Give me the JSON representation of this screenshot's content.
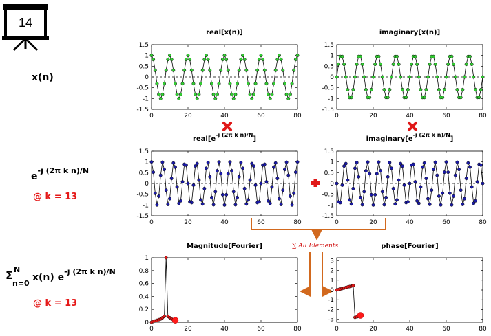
{
  "slide_number": "14",
  "colors": {
    "green": "#33cc33",
    "blue": "#1a1aa6",
    "red": "#e01818",
    "orange": "#d2691e"
  },
  "icons": {
    "slide_icon": "presentation-board-icon",
    "multiply": "red-x-icon",
    "plus": "red-plus-icon"
  },
  "labels": {
    "xn": "x(n)",
    "kernel_base": "e",
    "kernel_exp": "-j (2π k n)/N",
    "k1": "@ k = 13",
    "sum_sigma": "Σ",
    "sum_top": "N",
    "sum_bottom": "n=0",
    "sum_body": "x(n) e",
    "sum_exp": "-j (2π k n)/N",
    "k2": "@ k = 13",
    "sum_all": "∑ All Elements"
  },
  "chart_data": [
    {
      "id": "real-xn",
      "type": "line",
      "title": "real[x(n)]",
      "color": "green",
      "function": "cos",
      "frequency": 8,
      "N": 80,
      "xlim": [
        0,
        80
      ],
      "ylim": [
        -1.5,
        1.5
      ],
      "xticks": [
        0,
        20,
        40,
        60,
        80
      ],
      "yticks": [
        1.5,
        1,
        0.5,
        0,
        -0.5,
        -1,
        -1.5
      ],
      "zero_line": "dashed"
    },
    {
      "id": "imag-xn",
      "type": "line",
      "title": "imaginary[x(n)]",
      "color": "green",
      "function": "sin",
      "frequency": 8,
      "N": 80,
      "xlim": [
        0,
        80
      ],
      "ylim": [
        -1.5,
        1.5
      ],
      "xticks": [
        0,
        20,
        40,
        60,
        80
      ],
      "yticks": [
        1.5,
        1,
        0.5,
        0,
        -0.5,
        -1,
        -1.5
      ],
      "zero_line": "dashed"
    },
    {
      "id": "real-kernel",
      "type": "line",
      "title_base": "real[e",
      "title_exp": "-j (2π k n)/N",
      "title_end": "]",
      "color": "blue",
      "function": "cos",
      "frequency": 13,
      "N": 80,
      "xlim": [
        0,
        80
      ],
      "ylim": [
        -1.5,
        1.5
      ],
      "xticks": [
        0,
        20,
        40,
        60,
        80
      ],
      "yticks": [
        1.5,
        1,
        0.5,
        0,
        -0.5,
        -1,
        -1.5
      ],
      "zero_line": "dashed"
    },
    {
      "id": "imag-kernel",
      "type": "line",
      "title_base": "imaginary[e",
      "title_exp": "-j (2π k n)/N",
      "title_end": "]",
      "color": "blue",
      "function": "-sin",
      "frequency": 13,
      "N": 80,
      "xlim": [
        0,
        80
      ],
      "ylim": [
        -1.5,
        1.5
      ],
      "xticks": [
        0,
        20,
        40,
        60,
        80
      ],
      "yticks": [
        1.5,
        1,
        0.5,
        0,
        -0.5,
        -1,
        -1.5
      ],
      "zero_line": "dashed"
    },
    {
      "id": "magnitude",
      "type": "line",
      "title": "Magnitude[Fourier]",
      "color": "red",
      "x": [
        0,
        1,
        2,
        3,
        4,
        5,
        6,
        7,
        8,
        9,
        10,
        11,
        12,
        13
      ],
      "values": [
        0.0,
        0.01,
        0.02,
        0.03,
        0.04,
        0.05,
        0.07,
        0.09,
        1.0,
        0.09,
        0.07,
        0.05,
        0.04,
        0.03
      ],
      "highlight": {
        "x": 13,
        "y": 0.03
      },
      "flat_line_to": 80,
      "xlim": [
        0,
        80
      ],
      "ylim": [
        0,
        1
      ],
      "xticks": [
        0,
        20,
        40,
        60,
        80
      ],
      "yticks": [
        1,
        0.8,
        0.6,
        0.4,
        0.2,
        0
      ]
    },
    {
      "id": "phase",
      "type": "line",
      "title": "phase[Fourier]",
      "color": "red",
      "x": [
        0,
        1,
        2,
        3,
        4,
        5,
        6,
        7,
        8,
        9,
        10,
        11,
        12,
        13
      ],
      "values": [
        0.0,
        0.05,
        0.1,
        0.15,
        0.2,
        0.25,
        0.3,
        0.35,
        0.4,
        0.45,
        -2.8,
        -2.75,
        -2.7,
        -2.6
      ],
      "highlight": {
        "x": 13,
        "y": -2.6
      },
      "xlim": [
        0,
        80
      ],
      "ylim": [
        -3.3,
        3.3
      ],
      "xticks": [
        0,
        20,
        40,
        60,
        80
      ],
      "yticks": [
        3,
        2,
        1,
        0,
        -1,
        -2,
        -3
      ]
    }
  ]
}
